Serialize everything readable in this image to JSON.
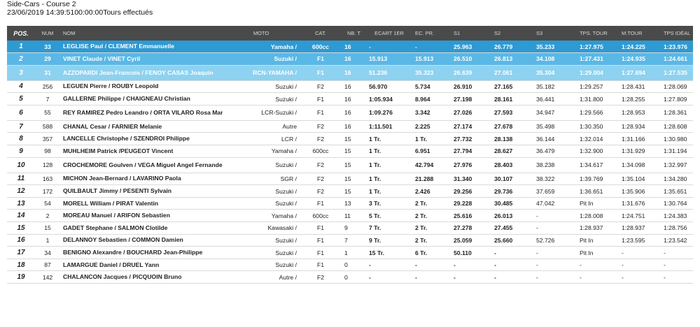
{
  "header": {
    "title": "Side-Cars - Course 2",
    "subtitle": "23/06/2019 14:39:5100:00:00Tours effectués"
  },
  "columns": {
    "pos": "POS.",
    "num": "NUM",
    "nom": "NOM",
    "moto": "MOTO",
    "cat": "CAT.",
    "nbt": "NB. T",
    "ecart": "ECART 1ER",
    "ecpr": "EC. PR.",
    "s1": "S1",
    "s2": "S2",
    "s3": "S3",
    "tps_tour": "TPS. TOUR",
    "mtour": "M.TOUR",
    "tps_ideal": "TPS IDÉAL"
  },
  "rows": [
    {
      "pos": "1",
      "num": "33",
      "nom": "LEGLISE Paul / CLEMENT Emmanuelle",
      "moto": "Yamaha /",
      "cat": "600cc",
      "nbt": "16",
      "ecart": "-",
      "ecpr": "-",
      "s1": "25.963",
      "s2": "26.779",
      "s3": "35.233",
      "tps_tour": "1:27.975",
      "mtour": "1:24.225",
      "tps_ideal": "1:23.976"
    },
    {
      "pos": "2",
      "num": "29",
      "nom": "VINET Claude / VINET Cyril",
      "moto": "Suzuki /",
      "cat": "F1",
      "nbt": "16",
      "ecart": "15.913",
      "ecpr": "15.913",
      "s1": "26.510",
      "s2": "26.813",
      "s3": "34.108",
      "tps_tour": "1:27.431",
      "mtour": "1:24.935",
      "tps_ideal": "1:24.661"
    },
    {
      "pos": "3",
      "num": "31",
      "nom": "AZZOPARDI Jean-Francois / FENOY CASAS Joaquin",
      "moto": "RCN-YAMAHA /",
      "cat": "F1",
      "nbt": "16",
      "ecart": "51.236",
      "ecpr": "35.323",
      "s1": "26.639",
      "s2": "27.061",
      "s3": "35.304",
      "tps_tour": "1:29.004",
      "mtour": "1:27.694",
      "tps_ideal": "1:27.535"
    },
    {
      "pos": "4",
      "num": "256",
      "nom": "LEGUEN Pierre / ROUBY Leopold",
      "moto": "Suzuki /",
      "cat": "F2",
      "nbt": "16",
      "ecart": "56.970",
      "ecpr": "5.734",
      "s1": "26.910",
      "s2": "27.165",
      "s3": "35.182",
      "tps_tour": "1:29.257",
      "mtour": "1:28.431",
      "tps_ideal": "1:28.069"
    },
    {
      "pos": "5",
      "num": "7",
      "nom": "GALLERNE Philippe / CHAIGNEAU Christian",
      "moto": "Suzuki /",
      "cat": "F1",
      "nbt": "16",
      "ecart": "1:05.934",
      "ecpr": "8.964",
      "s1": "27.198",
      "s2": "28.161",
      "s3": "36.441",
      "tps_tour": "1:31.800",
      "mtour": "1:28.255",
      "tps_ideal": "1:27.809"
    },
    {
      "pos": "6",
      "num": "55",
      "nom": "REY RAMIREZ Pedro Leandro / ORTA VILARO Rosa Mar",
      "moto": "LCR-Suzuki /",
      "cat": "F1",
      "nbt": "16",
      "ecart": "1:09.276",
      "ecpr": "3.342",
      "s1": "27.026",
      "s2": "27.593",
      "s3": "34.947",
      "tps_tour": "1:29.566",
      "mtour": "1:28.953",
      "tps_ideal": "1:28.361"
    },
    {
      "pos": "7",
      "num": "588",
      "nom": "CHANAL Cesar / FARNIER Melanie",
      "moto": "Autre",
      "cat": "F2",
      "nbt": "16",
      "ecart": "1:11.501",
      "ecpr": "2.225",
      "s1": "27.174",
      "s2": "27.678",
      "s3": "35.498",
      "tps_tour": "1:30.350",
      "mtour": "1:28.934",
      "tps_ideal": "1:28.608"
    },
    {
      "pos": "8",
      "num": "357",
      "nom": "LANCELLE Christophe / SZENDROI Philippe",
      "moto": "LCR /",
      "cat": "F2",
      "nbt": "15",
      "ecart": "1 Tr.",
      "ecpr": "1 Tr.",
      "s1": "27.732",
      "s2": "28.138",
      "s3": "36.144",
      "tps_tour": "1:32.014",
      "mtour": "1:31.166",
      "tps_ideal": "1:30.980"
    },
    {
      "pos": "9",
      "num": "98",
      "nom": "MUHLHEIM Patrick /PEUGEOT Vincent",
      "moto": "Yamaha /",
      "cat": "600cc",
      "nbt": "15",
      "ecart": "1 Tr.",
      "ecpr": "6.951",
      "s1": "27.794",
      "s2": "28.627",
      "s3": "36.479",
      "tps_tour": "1:32.900",
      "mtour": "1:31.929",
      "tps_ideal": "1:31.194"
    },
    {
      "pos": "10",
      "num": "128",
      "nom": "CROCHEMORE Goulven / VEGA Miguel Angel Fernandez",
      "moto": "Suzuki /",
      "cat": "F2",
      "nbt": "15",
      "ecart": "1 Tr.",
      "ecpr": "42.794",
      "s1": "27.976",
      "s2": "28.403",
      "s3": "38.238",
      "tps_tour": "1:34.617",
      "mtour": "1:34.098",
      "tps_ideal": "1:32.997"
    },
    {
      "pos": "11",
      "num": "163",
      "nom": "MICHON Jean-Bernard / LAVARINO Paola",
      "moto": "SGR /",
      "cat": "F2",
      "nbt": "15",
      "ecart": "1 Tr.",
      "ecpr": "21.288",
      "s1": "31.340",
      "s2": "30.107",
      "s3": "38.322",
      "tps_tour": "1:39.769",
      "mtour": "1:35.104",
      "tps_ideal": "1:34.280"
    },
    {
      "pos": "12",
      "num": "172",
      "nom": "QUILBAULT Jimmy / PESENTI Sylvain",
      "moto": "Suzuki /",
      "cat": "F2",
      "nbt": "15",
      "ecart": "1 Tr.",
      "ecpr": "2.426",
      "s1": "29.256",
      "s2": "29.736",
      "s3": "37.659",
      "tps_tour": "1:36.651",
      "mtour": "1:35.906",
      "tps_ideal": "1:35.651"
    },
    {
      "pos": "13",
      "num": "54",
      "nom": "MORELL William / PIRAT Valentin",
      "moto": "Suzuki /",
      "cat": "F1",
      "nbt": "13",
      "ecart": "3 Tr.",
      "ecpr": "2 Tr.",
      "s1": "29.228",
      "s2": "30.485",
      "s3": "47.042",
      "tps_tour": "Pit In",
      "mtour": "1:31.676",
      "tps_ideal": "1:30.764"
    },
    {
      "pos": "14",
      "num": "2",
      "nom": "MOREAU Manuel / ARIFON Sebastien",
      "moto": "Yamaha /",
      "cat": "600cc",
      "nbt": "11",
      "ecart": "5 Tr.",
      "ecpr": "2 Tr.",
      "s1": "25.616",
      "s2": "26.013",
      "s3": "-",
      "tps_tour": "1:28.008",
      "mtour": "1:24.751",
      "tps_ideal": "1:24.383"
    },
    {
      "pos": "15",
      "num": "15",
      "nom": "GADET Stephane / SALMON Clotilde",
      "moto": "Kawasaki /",
      "cat": "F1",
      "nbt": "9",
      "ecart": "7 Tr.",
      "ecpr": "2 Tr.",
      "s1": "27.278",
      "s2": "27.455",
      "s3": "-",
      "tps_tour": "1:28.937",
      "mtour": "1:28.937",
      "tps_ideal": "1:28.756"
    },
    {
      "pos": "16",
      "num": "1",
      "nom": "DELANNOY Sebastien / COMMON Damien",
      "moto": "Suzuki /",
      "cat": "F1",
      "nbt": "7",
      "ecart": "9 Tr.",
      "ecpr": "2 Tr.",
      "s1": "25.059",
      "s2": "25.660",
      "s3": "52.726",
      "tps_tour": "Pit In",
      "mtour": "1:23.595",
      "tps_ideal": "1:23.542"
    },
    {
      "pos": "17",
      "num": "34",
      "nom": "BENIGNO Alexandre / BOUCHARD Jean-Philippe",
      "moto": "Suzuki /",
      "cat": "F1",
      "nbt": "1",
      "ecart": "15 Tr.",
      "ecpr": "6 Tr.",
      "s1": "50.110",
      "s2": "-",
      "s3": "-",
      "tps_tour": "Pit In",
      "mtour": "-",
      "tps_ideal": "-"
    },
    {
      "pos": "18",
      "num": "87",
      "nom": "LAMARGUE Daniel / DRUEL Yann",
      "moto": "Suzuki /",
      "cat": "F1",
      "nbt": "0",
      "ecart": "-",
      "ecpr": "-",
      "s1": "-",
      "s2": "-",
      "s3": "-",
      "tps_tour": "-",
      "mtour": "-",
      "tps_ideal": "-"
    },
    {
      "pos": "19",
      "num": "142",
      "nom": "CHALANCON Jacques / PICQUOIN Bruno",
      "moto": "Autre /",
      "cat": "F2",
      "nbt": "0",
      "ecart": "-",
      "ecpr": "-",
      "s1": "-",
      "s2": "-",
      "s3": "-",
      "tps_tour": "-",
      "mtour": "-",
      "tps_ideal": "-"
    }
  ],
  "colors": {
    "header_bg": "#4a4a4a",
    "pos1_bg": "#2e9ad3",
    "pos2_bg": "#5ab8e6",
    "pos3_bg": "#8dd2f0"
  }
}
